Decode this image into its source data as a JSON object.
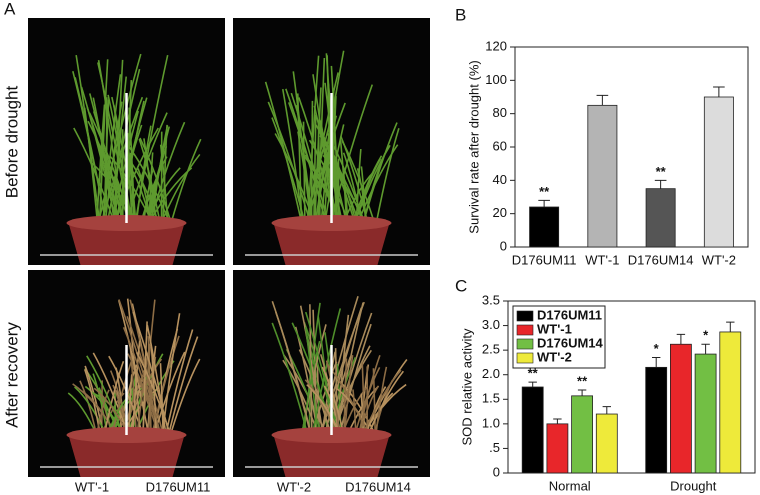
{
  "panels": {
    "a": "A",
    "b": "B",
    "c": "C"
  },
  "photo_rows": [
    "Before drought",
    "After recovery"
  ],
  "photo_labels": [
    "WT'-1",
    "D176UM11",
    "WT'-2",
    "D176UM14"
  ],
  "chart_data": [
    {
      "type": "bar",
      "ylabel": "Survival rate after drought (%)",
      "categories": [
        "D176UM11",
        "WT'-1",
        "D176UM14",
        "WT'-2"
      ],
      "values": [
        24,
        85,
        35,
        90
      ],
      "errors": [
        4,
        6,
        5,
        6
      ],
      "colors": [
        "#000000",
        "#b4b4b4",
        "#555555",
        "#dcdcdc"
      ],
      "significance": [
        "**",
        null,
        "**",
        null
      ],
      "ylim": [
        0,
        120
      ],
      "yticks": [
        0,
        20,
        40,
        60,
        80,
        100,
        120
      ]
    },
    {
      "type": "bar",
      "ylabel": "SOD relative activity",
      "categories": [
        "Normal",
        "Drought"
      ],
      "series": [
        {
          "name": "D176UM11",
          "color": "#000000",
          "values": [
            1.75,
            2.15
          ],
          "errors": [
            0.1,
            0.2
          ],
          "significance": [
            "**",
            "*"
          ]
        },
        {
          "name": "WT'-1",
          "color": "#e8262a",
          "values": [
            1.0,
            2.62
          ],
          "errors": [
            0.1,
            0.2
          ],
          "significance": [
            null,
            null
          ]
        },
        {
          "name": "D176UM14",
          "color": "#72bf44",
          "values": [
            1.57,
            2.42
          ],
          "errors": [
            0.12,
            0.2
          ],
          "significance": [
            "**",
            "*"
          ]
        },
        {
          "name": "WT'-2",
          "color": "#eeea3a",
          "values": [
            1.2,
            2.87
          ],
          "errors": [
            0.15,
            0.2
          ],
          "significance": [
            null,
            null
          ]
        }
      ],
      "legend": "upper left",
      "ylim": [
        0,
        3.5
      ],
      "yticks": [
        0,
        {
          "value": 0.5,
          "label": ".5"
        },
        {
          "value": 1,
          "label": "1.0"
        },
        1.5,
        {
          "value": 2,
          "label": "2.0"
        },
        2.5,
        {
          "value": 3,
          "label": "3.0"
        },
        3.5
      ]
    }
  ]
}
